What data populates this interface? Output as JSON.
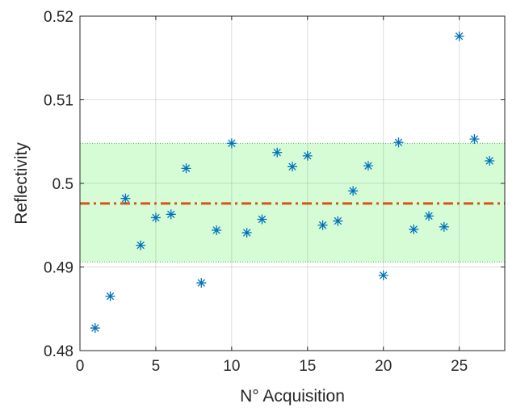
{
  "chart_data": {
    "type": "scatter",
    "xlabel": "N° Acquisition",
    "ylabel": "Reflectivity",
    "xlim": [
      0,
      28
    ],
    "ylim": [
      0.48,
      0.52
    ],
    "xticks": [
      0,
      5,
      10,
      15,
      20,
      25
    ],
    "xtick_labels": [
      "0",
      "5",
      "10",
      "15",
      "20",
      "25"
    ],
    "yticks": [
      0.48,
      0.49,
      0.5,
      0.51,
      0.52
    ],
    "ytick_labels": [
      "0.48",
      "0.49",
      "0.5",
      "0.51",
      "0.52"
    ],
    "grid": true,
    "series": [
      {
        "marker": "asterisk",
        "color": "#0072BD",
        "x": [
          1,
          2,
          3,
          4,
          5,
          6,
          7,
          8,
          9,
          10,
          11,
          12,
          13,
          14,
          15,
          16,
          17,
          18,
          19,
          20,
          21,
          22,
          23,
          24,
          25,
          26,
          27
        ],
        "y": [
          0.4827,
          0.4865,
          0.4982,
          0.4926,
          0.4959,
          0.4963,
          0.5018,
          0.4881,
          0.4944,
          0.5048,
          0.4941,
          0.4957,
          0.5037,
          0.502,
          0.5033,
          0.495,
          0.4955,
          0.4991,
          0.5021,
          0.489,
          0.5049,
          0.4945,
          0.4961,
          0.4948,
          0.5176,
          0.5053,
          0.5027
        ]
      }
    ],
    "mean_line": {
      "y": 0.4976,
      "style": "dash-dot",
      "color": "#D95319"
    },
    "band": {
      "lower": 0.4906,
      "upper": 0.5048,
      "fill": "#D6FCD6",
      "edge_color": "#4CAF50"
    }
  }
}
